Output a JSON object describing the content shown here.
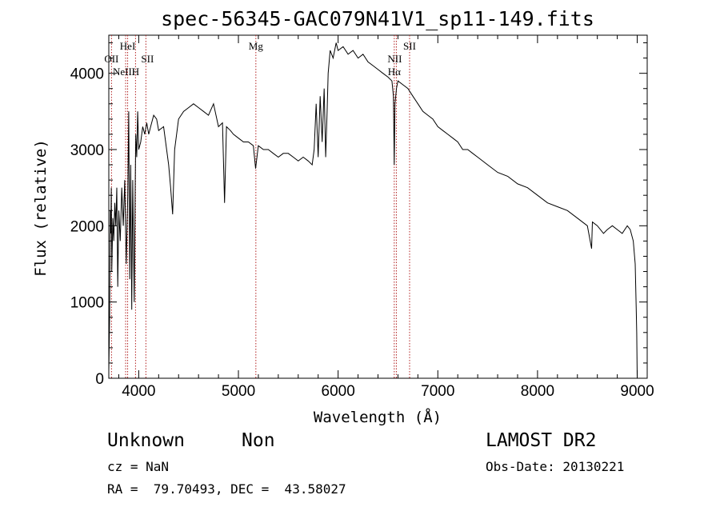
{
  "chart_data": {
    "type": "line",
    "title": "spec-56345-GAC079N41V1_sp11-149.fits",
    "xlabel": "Wavelength (Å)",
    "ylabel": "Flux (relative)",
    "xlim": [
      3700,
      9100
    ],
    "ylim": [
      0,
      4500
    ],
    "xticks": [
      4000,
      5000,
      6000,
      7000,
      8000,
      9000
    ],
    "yticks": [
      0,
      1000,
      2000,
      3000,
      4000
    ],
    "grid": false,
    "series": [
      {
        "color": "#000000",
        "x": [
          3700,
          3708,
          3715,
          3720,
          3725,
          3730,
          3740,
          3750,
          3760,
          3770,
          3780,
          3790,
          3800,
          3815,
          3830,
          3845,
          3860,
          3875,
          3890,
          3900,
          3910,
          3920,
          3930,
          3940,
          3955,
          3965,
          3970,
          3980,
          3990,
          4000,
          4020,
          4040,
          4060,
          4080,
          4100,
          4120,
          4150,
          4180,
          4200,
          4250,
          4300,
          4320,
          4340,
          4360,
          4400,
          4450,
          4500,
          4550,
          4600,
          4650,
          4700,
          4750,
          4800,
          4840,
          4861,
          4880,
          4920,
          4950,
          5000,
          5050,
          5100,
          5150,
          5172,
          5200,
          5250,
          5300,
          5350,
          5400,
          5450,
          5500,
          5550,
          5600,
          5650,
          5700,
          5740,
          5760,
          5780,
          5800,
          5820,
          5840,
          5860,
          5875,
          5890,
          5900,
          5920,
          5950,
          5980,
          6000,
          6050,
          6100,
          6150,
          6200,
          6250,
          6300,
          6350,
          6400,
          6450,
          6500,
          6540,
          6555,
          6563,
          6570,
          6585,
          6600,
          6650,
          6700,
          6750,
          6800,
          6850,
          6900,
          6950,
          7000,
          7050,
          7100,
          7150,
          7200,
          7250,
          7300,
          7350,
          7400,
          7500,
          7600,
          7700,
          7800,
          7900,
          8000,
          8100,
          8200,
          8300,
          8400,
          8500,
          8542,
          8550,
          8600,
          8662,
          8700,
          8750,
          8800,
          8850,
          8900,
          8930,
          8960,
          8980,
          8990,
          8995,
          9000
        ],
        "y": [
          100,
          800,
          2200,
          1900,
          2500,
          1400,
          2100,
          1800,
          2300,
          2000,
          2500,
          1200,
          2200,
          1800,
          2500,
          2000,
          2600,
          1500,
          2400,
          3500,
          1300,
          2800,
          900,
          2600,
          1000,
          2500,
          3200,
          2900,
          3500,
          3000,
          3100,
          3300,
          3200,
          3350,
          3200,
          3300,
          3450,
          3400,
          3250,
          3300,
          2800,
          2500,
          2150,
          3000,
          3400,
          3500,
          3550,
          3600,
          3550,
          3500,
          3450,
          3600,
          3300,
          3350,
          2300,
          3300,
          3250,
          3200,
          3150,
          3100,
          3100,
          3050,
          2750,
          3050,
          3000,
          3000,
          2950,
          2900,
          2950,
          2950,
          2900,
          2850,
          2900,
          2850,
          2800,
          3000,
          3600,
          2900,
          3700,
          3100,
          3800,
          2900,
          3500,
          4000,
          4300,
          4200,
          4400,
          4300,
          4350,
          4250,
          4300,
          4200,
          4250,
          4150,
          4100,
          4050,
          4000,
          3950,
          3900,
          3700,
          2800,
          3600,
          3800,
          3900,
          3850,
          3800,
          3700,
          3600,
          3500,
          3450,
          3400,
          3300,
          3250,
          3200,
          3150,
          3100,
          3000,
          3000,
          2950,
          2900,
          2800,
          2700,
          2650,
          2550,
          2500,
          2400,
          2300,
          2250,
          2200,
          2100,
          2000,
          1700,
          2050,
          2000,
          1900,
          1950,
          2000,
          1950,
          1900,
          2000,
          1950,
          1800,
          1500,
          900,
          600,
          0
        ]
      }
    ],
    "annotations": {
      "x": [
        3727,
        3869,
        3889,
        3968,
        4072,
        5175,
        6563,
        6584,
        6717
      ],
      "color": "#b22222",
      "labels": [
        "OII",
        "NeIII",
        "HeI",
        "H",
        "SII",
        "Mg",
        "Hα",
        "NII",
        "SII"
      ]
    }
  },
  "info": {
    "object_class": "Unknown",
    "object_subclass": "Non",
    "survey": "LAMOST DR2",
    "redshift": "cz = NaN",
    "obs_date": "Obs-Date: 20130221",
    "coordinates": "RA =  79.70493, DEC =  43.58027"
  }
}
